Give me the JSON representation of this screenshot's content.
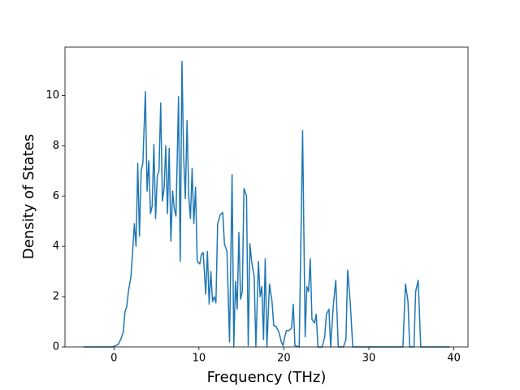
{
  "chart_data": {
    "type": "line",
    "xlabel": "Frequency (THz)",
    "ylabel": "Density of States",
    "x": [
      -3.6,
      -0.2,
      0,
      0.5,
      0.8,
      1.1,
      1.3,
      1.5,
      1.7,
      2.0,
      2.2,
      2.4,
      2.6,
      2.8,
      3.0,
      3.2,
      3.4,
      3.7,
      3.9,
      4.1,
      4.3,
      4.5,
      4.7,
      4.9,
      5.1,
      5.3,
      5.5,
      5.7,
      5.9,
      6.1,
      6.3,
      6.5,
      6.7,
      6.9,
      7.1,
      7.3,
      7.6,
      7.8,
      8.0,
      8.2,
      8.4,
      8.6,
      8.8,
      9.0,
      9.2,
      9.4,
      9.6,
      9.8,
      10.1,
      10.3,
      10.5,
      10.8,
      11.0,
      11.2,
      11.4,
      11.6,
      11.8,
      12.0,
      12.2,
      12.5,
      12.8,
      13.0,
      13.3,
      13.6,
      13.9,
      14.1,
      14.3,
      14.5,
      14.7,
      14.9,
      15.1,
      15.3,
      15.6,
      15.8,
      16.0,
      16.2,
      16.5,
      16.7,
      17.0,
      17.2,
      17.4,
      17.6,
      17.8,
      18.0,
      18.3,
      18.6,
      18.8,
      19.1,
      19.4,
      19.7,
      19.9,
      20.1,
      20.3,
      20.6,
      20.9,
      21.1,
      21.3,
      21.8,
      22.2,
      22.5,
      22.7,
      22.9,
      23.1,
      23.3,
      23.6,
      23.8,
      24.0,
      24.5,
      24.8,
      25.0,
      25.3,
      25.5,
      25.8,
      26.1,
      26.4,
      27.0,
      27.3,
      27.5,
      27.8,
      28.1,
      34.0,
      34.3,
      34.6,
      34.8,
      35.3,
      35.5,
      35.8,
      36.1,
      39.5
    ],
    "series": [
      {
        "color": "#1f77b4",
        "values": [
          0,
          0,
          0.02,
          0.1,
          0.3,
          0.6,
          1.4,
          1.6,
          2.2,
          2.8,
          3.8,
          4.9,
          4.0,
          7.3,
          4.4,
          7.0,
          7.3,
          10.15,
          6.2,
          7.4,
          5.3,
          5.6,
          8.05,
          5.1,
          6.8,
          7.0,
          9.7,
          5.8,
          6.3,
          8.0,
          5.3,
          7.9,
          4.2,
          6.2,
          5.5,
          5.2,
          9.95,
          3.4,
          11.35,
          7.6,
          5.9,
          9.0,
          6.0,
          5.1,
          7.1,
          4.9,
          6.35,
          3.4,
          3.3,
          3.7,
          3.75,
          2.1,
          3.8,
          1.7,
          3.0,
          1.8,
          2.0,
          1.75,
          4.9,
          5.25,
          5.35,
          4.1,
          3.8,
          0.2,
          6.85,
          0,
          2.6,
          1.5,
          4.55,
          1.9,
          2.2,
          6.3,
          6.0,
          0.05,
          4.1,
          3.4,
          2.8,
          0,
          3.4,
          2.0,
          2.4,
          0.3,
          3.5,
          0,
          2.5,
          1.8,
          0.85,
          0.8,
          0.6,
          0.2,
          0.05,
          0.4,
          0.65,
          0.65,
          0.75,
          1.7,
          0.05,
          0,
          8.6,
          0.4,
          2.4,
          2.2,
          3.5,
          1.1,
          0.95,
          1.3,
          0,
          0,
          0.4,
          1.3,
          1.5,
          0,
          1.6,
          2.65,
          0,
          0,
          0.3,
          3.05,
          1.8,
          0,
          0,
          2.5,
          1.8,
          0,
          0,
          2.2,
          2.65,
          0,
          0
        ]
      }
    ],
    "xlim": [
      -5.76,
      41.66
    ],
    "xticks": [
      0,
      10,
      20,
      30,
      40
    ],
    "ylim": [
      0,
      11.92
    ],
    "yticks": [
      0,
      2,
      4,
      6,
      8,
      10
    ]
  }
}
